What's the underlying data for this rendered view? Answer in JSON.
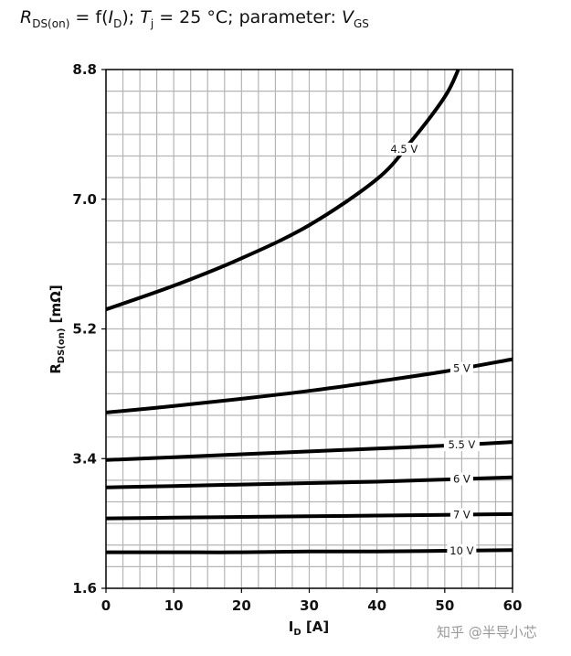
{
  "title": {
    "r": "R",
    "r_sub": "DS(on)",
    "eq": " = f(",
    "i": "I",
    "i_sub": "D",
    "close": "); ",
    "t": "T",
    "t_sub": "j",
    "rest": " = 25 °C; parameter: ",
    "v": "V",
    "v_sub": "GS"
  },
  "watermark": "知乎 @半导小芯",
  "chart_data": {
    "type": "line",
    "title": "RDS(on) = f(ID); Tj = 25 °C; parameter: VGS",
    "xlabel": "ID [A]",
    "xlabel_main": "I",
    "xlabel_sub": "D",
    "xlabel_unit": " [A]",
    "ylabel": "RDS(on) [mΩ]",
    "ylabel_main": "R",
    "ylabel_sub": "DS(on)",
    "ylabel_unit": " [mΩ]",
    "xlim": [
      0,
      60
    ],
    "ylim": [
      1.6,
      8.8
    ],
    "xticks": [
      "0",
      "10",
      "20",
      "30",
      "40",
      "50",
      "60"
    ],
    "yticks": [
      "1.6",
      "3.4",
      "5.2",
      "7.0",
      "8.8"
    ],
    "grid": true,
    "series": [
      {
        "name": "4.5 V",
        "x": [
          0,
          10,
          20,
          30,
          40,
          45,
          50,
          52
        ],
        "y": [
          5.47,
          5.8,
          6.18,
          6.64,
          7.28,
          7.8,
          8.42,
          8.8
        ]
      },
      {
        "name": "5 V",
        "x": [
          0,
          10,
          20,
          30,
          40,
          50,
          60
        ],
        "y": [
          4.04,
          4.13,
          4.23,
          4.34,
          4.47,
          4.61,
          4.78
        ]
      },
      {
        "name": "5.5 V",
        "x": [
          0,
          10,
          20,
          30,
          40,
          50,
          60
        ],
        "y": [
          3.38,
          3.42,
          3.46,
          3.5,
          3.54,
          3.58,
          3.63
        ]
      },
      {
        "name": "6 V",
        "x": [
          0,
          10,
          20,
          30,
          40,
          50,
          60
        ],
        "y": [
          3.0,
          3.02,
          3.04,
          3.06,
          3.08,
          3.11,
          3.14
        ]
      },
      {
        "name": "7 V",
        "x": [
          0,
          10,
          20,
          30,
          40,
          50,
          60
        ],
        "y": [
          2.57,
          2.58,
          2.59,
          2.6,
          2.61,
          2.62,
          2.63
        ]
      },
      {
        "name": "10 V",
        "x": [
          0,
          10,
          20,
          30,
          40,
          50,
          60
        ],
        "y": [
          2.1,
          2.1,
          2.1,
          2.11,
          2.11,
          2.12,
          2.13
        ]
      }
    ]
  }
}
